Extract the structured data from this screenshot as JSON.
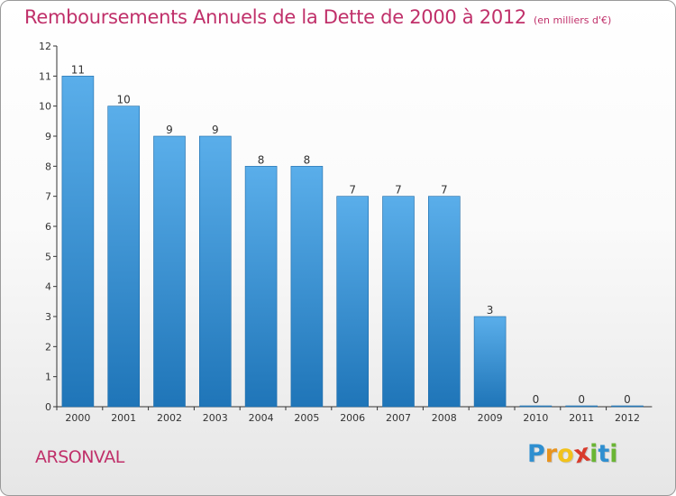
{
  "header": {
    "title": "Remboursements Annuels de la Dette de 2000 à 2012",
    "unit": "(en milliers d'€)"
  },
  "footer": {
    "commune": "ARSONVAL",
    "logo_text": "Proxiti",
    "logo_letters": [
      {
        "char": "P",
        "color": "#2f8fd0"
      },
      {
        "char": "r",
        "color": "#e8931e"
      },
      {
        "char": "o",
        "color": "#f2c21a"
      },
      {
        "char": "x",
        "color": "#d93a2b"
      },
      {
        "char": "i",
        "color": "#6ab534"
      },
      {
        "char": "t",
        "color": "#2f8fd0"
      },
      {
        "char": "i",
        "color": "#6ab534"
      }
    ]
  },
  "colors": {
    "title": "#c0306a",
    "bar_top": "#5aaeea",
    "bar_bottom": "#1f75b8",
    "axis": "#333333"
  },
  "chart_data": {
    "type": "bar",
    "title": "Remboursements Annuels de la Dette de 2000 à 2012",
    "ylabel": "en milliers d'€",
    "xlabel": "",
    "categories": [
      "2000",
      "2001",
      "2002",
      "2003",
      "2004",
      "2005",
      "2006",
      "2007",
      "2008",
      "2009",
      "2010",
      "2011",
      "2012"
    ],
    "values": [
      11,
      10,
      9,
      9,
      8,
      8,
      7,
      7,
      7,
      3,
      0,
      0,
      0
    ],
    "yticks": [
      0,
      1,
      2,
      3,
      4,
      5,
      6,
      7,
      8,
      9,
      10,
      11,
      12
    ],
    "ylim": [
      0,
      12
    ],
    "grid": false,
    "legend": "none"
  }
}
